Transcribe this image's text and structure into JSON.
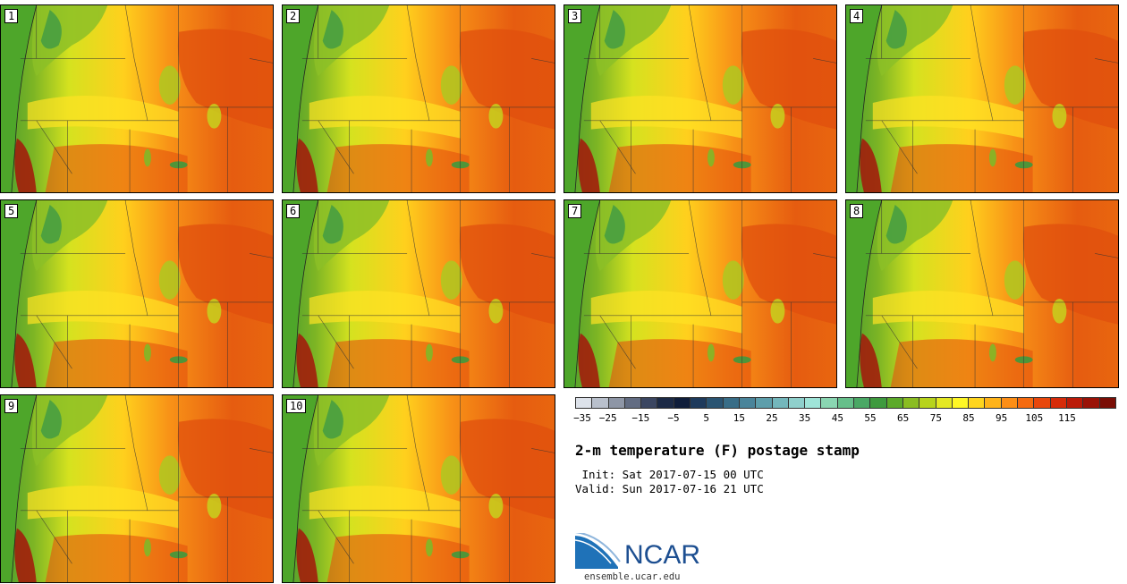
{
  "panels": [
    {
      "label": "1"
    },
    {
      "label": "2"
    },
    {
      "label": "3"
    },
    {
      "label": "4"
    },
    {
      "label": "5"
    },
    {
      "label": "6"
    },
    {
      "label": "7"
    },
    {
      "label": "8"
    },
    {
      "label": "9"
    },
    {
      "label": "10"
    }
  ],
  "legend": {
    "colors": [
      "#dde2ea",
      "#b9c0cc",
      "#8e96a6",
      "#626c82",
      "#3b4661",
      "#1c2a46",
      "#0f1d3a",
      "#1e3a5c",
      "#2a5472",
      "#386d87",
      "#4a849a",
      "#5d9eab",
      "#74b7bc",
      "#8fd0cc",
      "#9fe4d8",
      "#8ad6b2",
      "#66bf8a",
      "#4aa865",
      "#3e9a3e",
      "#5caa2a",
      "#8abd22",
      "#b7d31c",
      "#e4e822",
      "#fff726",
      "#ffd51e",
      "#ffb319",
      "#fd8e15",
      "#f56a0f",
      "#e8470c",
      "#d62b09",
      "#bb1a08",
      "#9a1207",
      "#7a0d05"
    ],
    "ticks": [
      "−35",
      "−25",
      "−15",
      "−5",
      "5",
      "15",
      "25",
      "35",
      "45",
      "55",
      "65",
      "75",
      "85",
      "95",
      "105",
      "115"
    ]
  },
  "title": "2-m temperature (F) postage stamp",
  "init_line": " Init: Sat 2017-07-15 00 UTC",
  "valid_line": "Valid: Sun 2017-07-16 21 UTC",
  "logo": {
    "text": "NCAR",
    "site": "ensemble.ucar.edu"
  }
}
